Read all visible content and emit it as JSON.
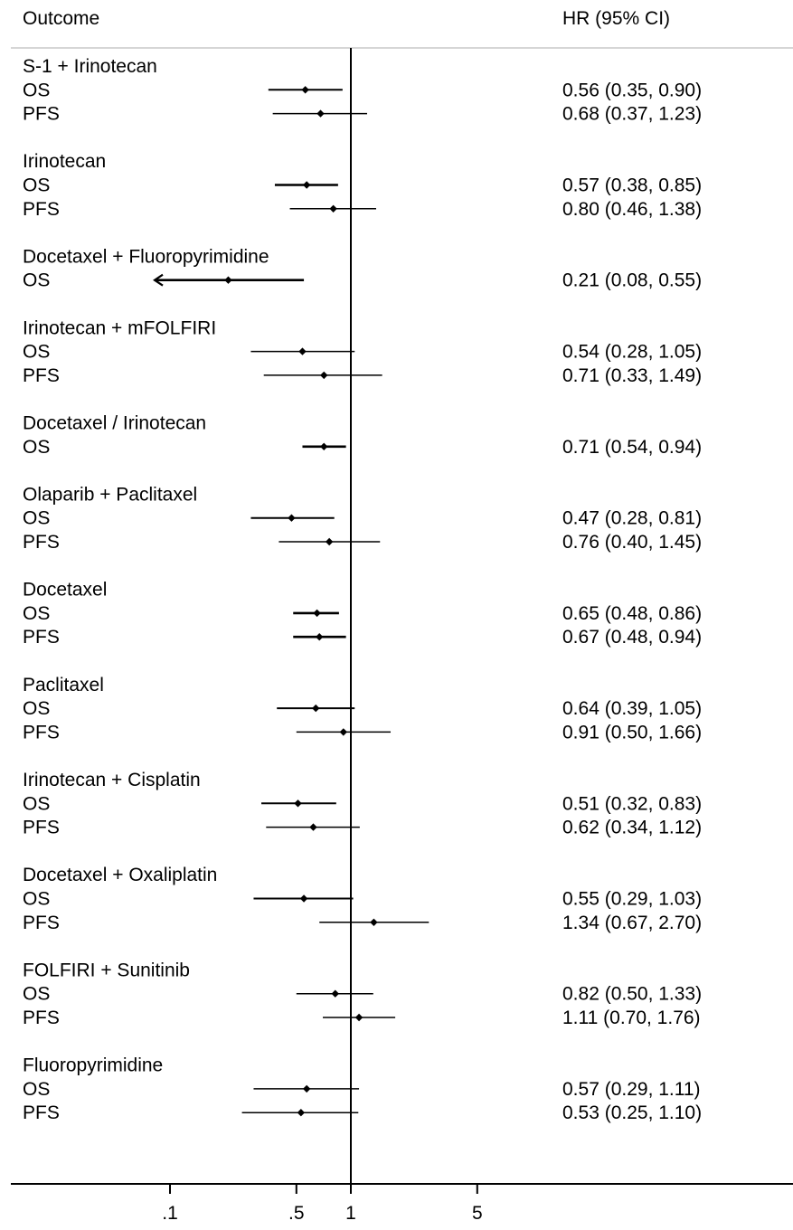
{
  "chart_data": {
    "type": "forest",
    "headers": {
      "left": "Outcome",
      "right": "HR (95% CI)"
    },
    "x_scale": "log",
    "xlim": [
      0.04,
      20
    ],
    "x_ticks": [
      {
        "value": 0.1,
        "label": ".1"
      },
      {
        "value": 0.5,
        "label": ".5"
      },
      {
        "value": 1,
        "label": "1"
      },
      {
        "value": 5,
        "label": "5"
      }
    ],
    "reference_line": 1,
    "groups": [
      {
        "name": "S-1 + Irinotecan",
        "rows": [
          {
            "label": "OS",
            "hr": 0.56,
            "lo": 0.35,
            "hi": 0.9,
            "text": "0.56 (0.35, 0.90)"
          },
          {
            "label": "PFS",
            "hr": 0.68,
            "lo": 0.37,
            "hi": 1.23,
            "text": "0.68 (0.37, 1.23)"
          }
        ]
      },
      {
        "name": "Irinotecan",
        "rows": [
          {
            "label": "OS",
            "hr": 0.57,
            "lo": 0.38,
            "hi": 0.85,
            "text": "0.57 (0.38, 0.85)"
          },
          {
            "label": "PFS",
            "hr": 0.8,
            "lo": 0.46,
            "hi": 1.38,
            "text": "0.80 (0.46, 1.38)"
          }
        ]
      },
      {
        "name": "Docetaxel + Fluoropyrimidine",
        "rows": [
          {
            "label": "OS",
            "hr": 0.21,
            "lo": 0.08,
            "hi": 0.55,
            "text": "0.21 (0.08, 0.55)",
            "arrow_left": true
          }
        ]
      },
      {
        "name": "Irinotecan + mFOLFIRI",
        "rows": [
          {
            "label": "OS",
            "hr": 0.54,
            "lo": 0.28,
            "hi": 1.05,
            "text": "0.54 (0.28, 1.05)"
          },
          {
            "label": "PFS",
            "hr": 0.71,
            "lo": 0.33,
            "hi": 1.49,
            "text": "0.71 (0.33, 1.49)"
          }
        ]
      },
      {
        "name": "Docetaxel / Irinotecan",
        "rows": [
          {
            "label": "OS",
            "hr": 0.71,
            "lo": 0.54,
            "hi": 0.94,
            "text": "0.71 (0.54, 0.94)"
          }
        ]
      },
      {
        "name": "Olaparib + Paclitaxel",
        "rows": [
          {
            "label": "OS",
            "hr": 0.47,
            "lo": 0.28,
            "hi": 0.81,
            "text": "0.47 (0.28, 0.81)"
          },
          {
            "label": "PFS",
            "hr": 0.76,
            "lo": 0.4,
            "hi": 1.45,
            "text": "0.76 (0.40, 1.45)"
          }
        ]
      },
      {
        "name": "Docetaxel",
        "rows": [
          {
            "label": "OS",
            "hr": 0.65,
            "lo": 0.48,
            "hi": 0.86,
            "text": "0.65 (0.48, 0.86)"
          },
          {
            "label": "PFS",
            "hr": 0.67,
            "lo": 0.48,
            "hi": 0.94,
            "text": "0.67 (0.48, 0.94)"
          }
        ]
      },
      {
        "name": "Paclitaxel",
        "rows": [
          {
            "label": "OS",
            "hr": 0.64,
            "lo": 0.39,
            "hi": 1.05,
            "text": "0.64 (0.39, 1.05)"
          },
          {
            "label": "PFS",
            "hr": 0.91,
            "lo": 0.5,
            "hi": 1.66,
            "text": "0.91 (0.50, 1.66)"
          }
        ]
      },
      {
        "name": "Irinotecan + Cisplatin",
        "rows": [
          {
            "label": "OS",
            "hr": 0.51,
            "lo": 0.32,
            "hi": 0.83,
            "text": "0.51 (0.32, 0.83)"
          },
          {
            "label": "PFS",
            "hr": 0.62,
            "lo": 0.34,
            "hi": 1.12,
            "text": "0.62 (0.34, 1.12)"
          }
        ]
      },
      {
        "name": "Docetaxel + Oxaliplatin",
        "rows": [
          {
            "label": "OS",
            "hr": 0.55,
            "lo": 0.29,
            "hi": 1.03,
            "text": "0.55 (0.29, 1.03)"
          },
          {
            "label": "PFS",
            "hr": 1.34,
            "lo": 0.67,
            "hi": 2.7,
            "text": "1.34 (0.67, 2.70)"
          }
        ]
      },
      {
        "name": "FOLFIRI + Sunitinib",
        "rows": [
          {
            "label": "OS",
            "hr": 0.82,
            "lo": 0.5,
            "hi": 1.33,
            "text": "0.82 (0.50, 1.33)"
          },
          {
            "label": "PFS",
            "hr": 1.11,
            "lo": 0.7,
            "hi": 1.76,
            "text": "1.11 (0.70, 1.76)"
          }
        ]
      },
      {
        "name": "Fluoropyrimidine",
        "rows": [
          {
            "label": "OS",
            "hr": 0.57,
            "lo": 0.29,
            "hi": 1.11,
            "text": "0.57 (0.29, 1.11)"
          },
          {
            "label": "PFS",
            "hr": 0.53,
            "lo": 0.25,
            "hi": 1.1,
            "text": "0.53 (0.25, 1.10)"
          }
        ]
      }
    ]
  }
}
